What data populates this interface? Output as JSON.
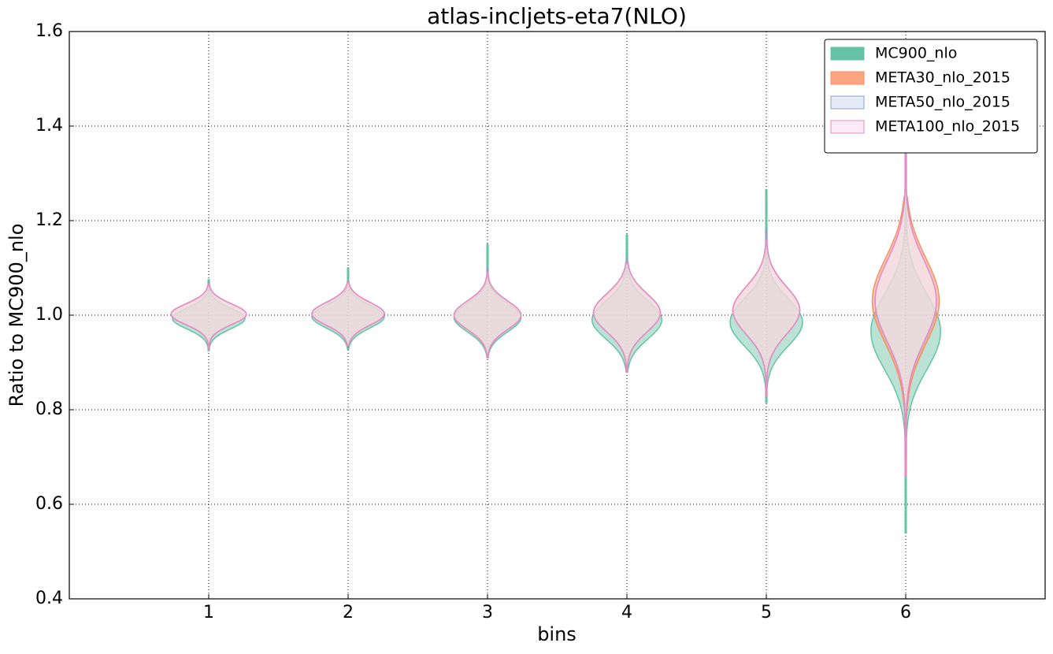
{
  "chart_data": {
    "type": "violin",
    "title": "atlas-incljets-eta7(NLO)",
    "xlabel": "bins",
    "ylabel": "Ratio to MC900_nlo",
    "xlim": [
      0,
      7
    ],
    "xticks": [
      1,
      2,
      3,
      4,
      5,
      6
    ],
    "ylim": [
      0.4,
      1.6
    ],
    "yticks": [
      0.4,
      0.6,
      0.8,
      {
        "value": 1.0,
        "label": "1.0"
      },
      1.2,
      1.4,
      1.6
    ],
    "grid": true,
    "legend": "upper right",
    "series": [
      {
        "name": "MC900_nlo",
        "color": "#66c2a5",
        "edge": "#66c2a5",
        "min": [
          0.925,
          0.928,
          0.91,
          0.88,
          0.815,
          0.54
        ],
        "max": [
          1.075,
          1.1,
          1.15,
          1.17,
          1.265,
          1.43
        ],
        "center": [
          0.993,
          0.997,
          0.995,
          0.99,
          0.985,
          0.965
        ],
        "sd": [
          0.022,
          0.024,
          0.03,
          0.04,
          0.05,
          0.08
        ],
        "width": [
          0.26,
          0.26,
          0.24,
          0.25,
          0.26,
          0.25
        ]
      },
      {
        "name": "META30_nlo_2015",
        "color": "#fc8d62",
        "edge": "#fc8d62",
        "min": [
          0.93,
          0.935,
          0.91,
          0.88,
          0.83,
          0.67
        ],
        "max": [
          1.065,
          1.07,
          1.09,
          1.11,
          1.16,
          1.25
        ],
        "center": [
          1.002,
          1.003,
          1.0,
          1.005,
          1.01,
          1.03
        ],
        "sd": [
          0.022,
          0.024,
          0.03,
          0.04,
          0.05,
          0.09
        ],
        "width": [
          0.27,
          0.26,
          0.24,
          0.24,
          0.24,
          0.24
        ]
      },
      {
        "name": "META50_nlo_2015",
        "color": "#dde6f5",
        "edge": "#8da0cb",
        "min": [
          0.93,
          0.935,
          0.91,
          0.88,
          0.83,
          0.7
        ],
        "max": [
          1.07,
          1.07,
          1.1,
          1.12,
          1.18,
          1.36
        ],
        "center": [
          1.002,
          1.003,
          1.0,
          1.005,
          1.01,
          1.03
        ],
        "sd": [
          0.022,
          0.024,
          0.03,
          0.04,
          0.05,
          0.085
        ],
        "width": [
          0.27,
          0.26,
          0.24,
          0.24,
          0.24,
          0.22
        ]
      },
      {
        "name": "META100_nlo_2015",
        "color": "#fbe6f3",
        "edge": "#e78ac3",
        "min": [
          0.93,
          0.935,
          0.91,
          0.88,
          0.83,
          0.66
        ],
        "max": [
          1.065,
          1.07,
          1.09,
          1.11,
          1.16,
          1.34
        ],
        "center": [
          1.002,
          1.003,
          1.0,
          1.005,
          1.01,
          1.03
        ],
        "sd": [
          0.022,
          0.024,
          0.03,
          0.04,
          0.05,
          0.085
        ],
        "width": [
          0.27,
          0.26,
          0.24,
          0.24,
          0.24,
          0.22
        ]
      }
    ]
  }
}
